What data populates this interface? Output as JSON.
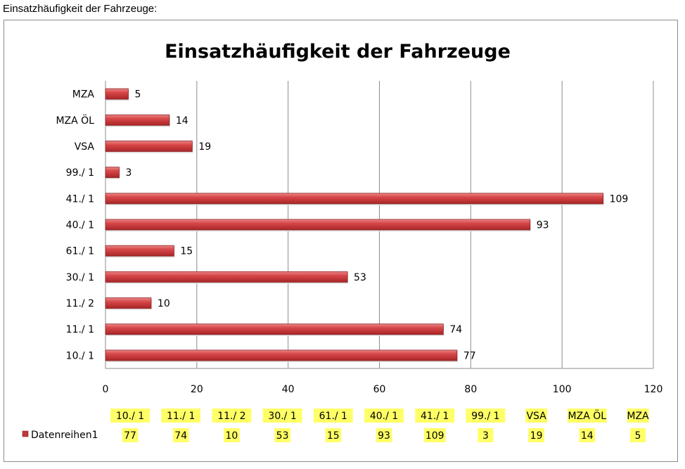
{
  "caption": "Einsatzhäufigkeit der Fahrzeuge:",
  "chart_data": {
    "type": "bar",
    "orientation": "horizontal",
    "title": "Einsatzhäufigkeit der Fahrzeuge",
    "categories": [
      "10./ 1",
      "11./ 1",
      "11./ 2",
      "30./ 1",
      "61./ 1",
      "40./ 1",
      "41./ 1",
      "99./ 1",
      "VSA",
      "MZA ÖL",
      "MZA"
    ],
    "series": [
      {
        "name": "Datenreihen1",
        "values": [
          77,
          74,
          10,
          53,
          15,
          93,
          109,
          3,
          19,
          14,
          5
        ],
        "color": "#c0393b"
      }
    ],
    "xlim": [
      0,
      120
    ],
    "xticks": [
      0,
      20,
      40,
      60,
      80,
      100,
      120
    ],
    "grid": true,
    "data_labels": true,
    "data_table": true,
    "data_table_highlight": "#ffff66",
    "legend_position": "bottom-left"
  }
}
